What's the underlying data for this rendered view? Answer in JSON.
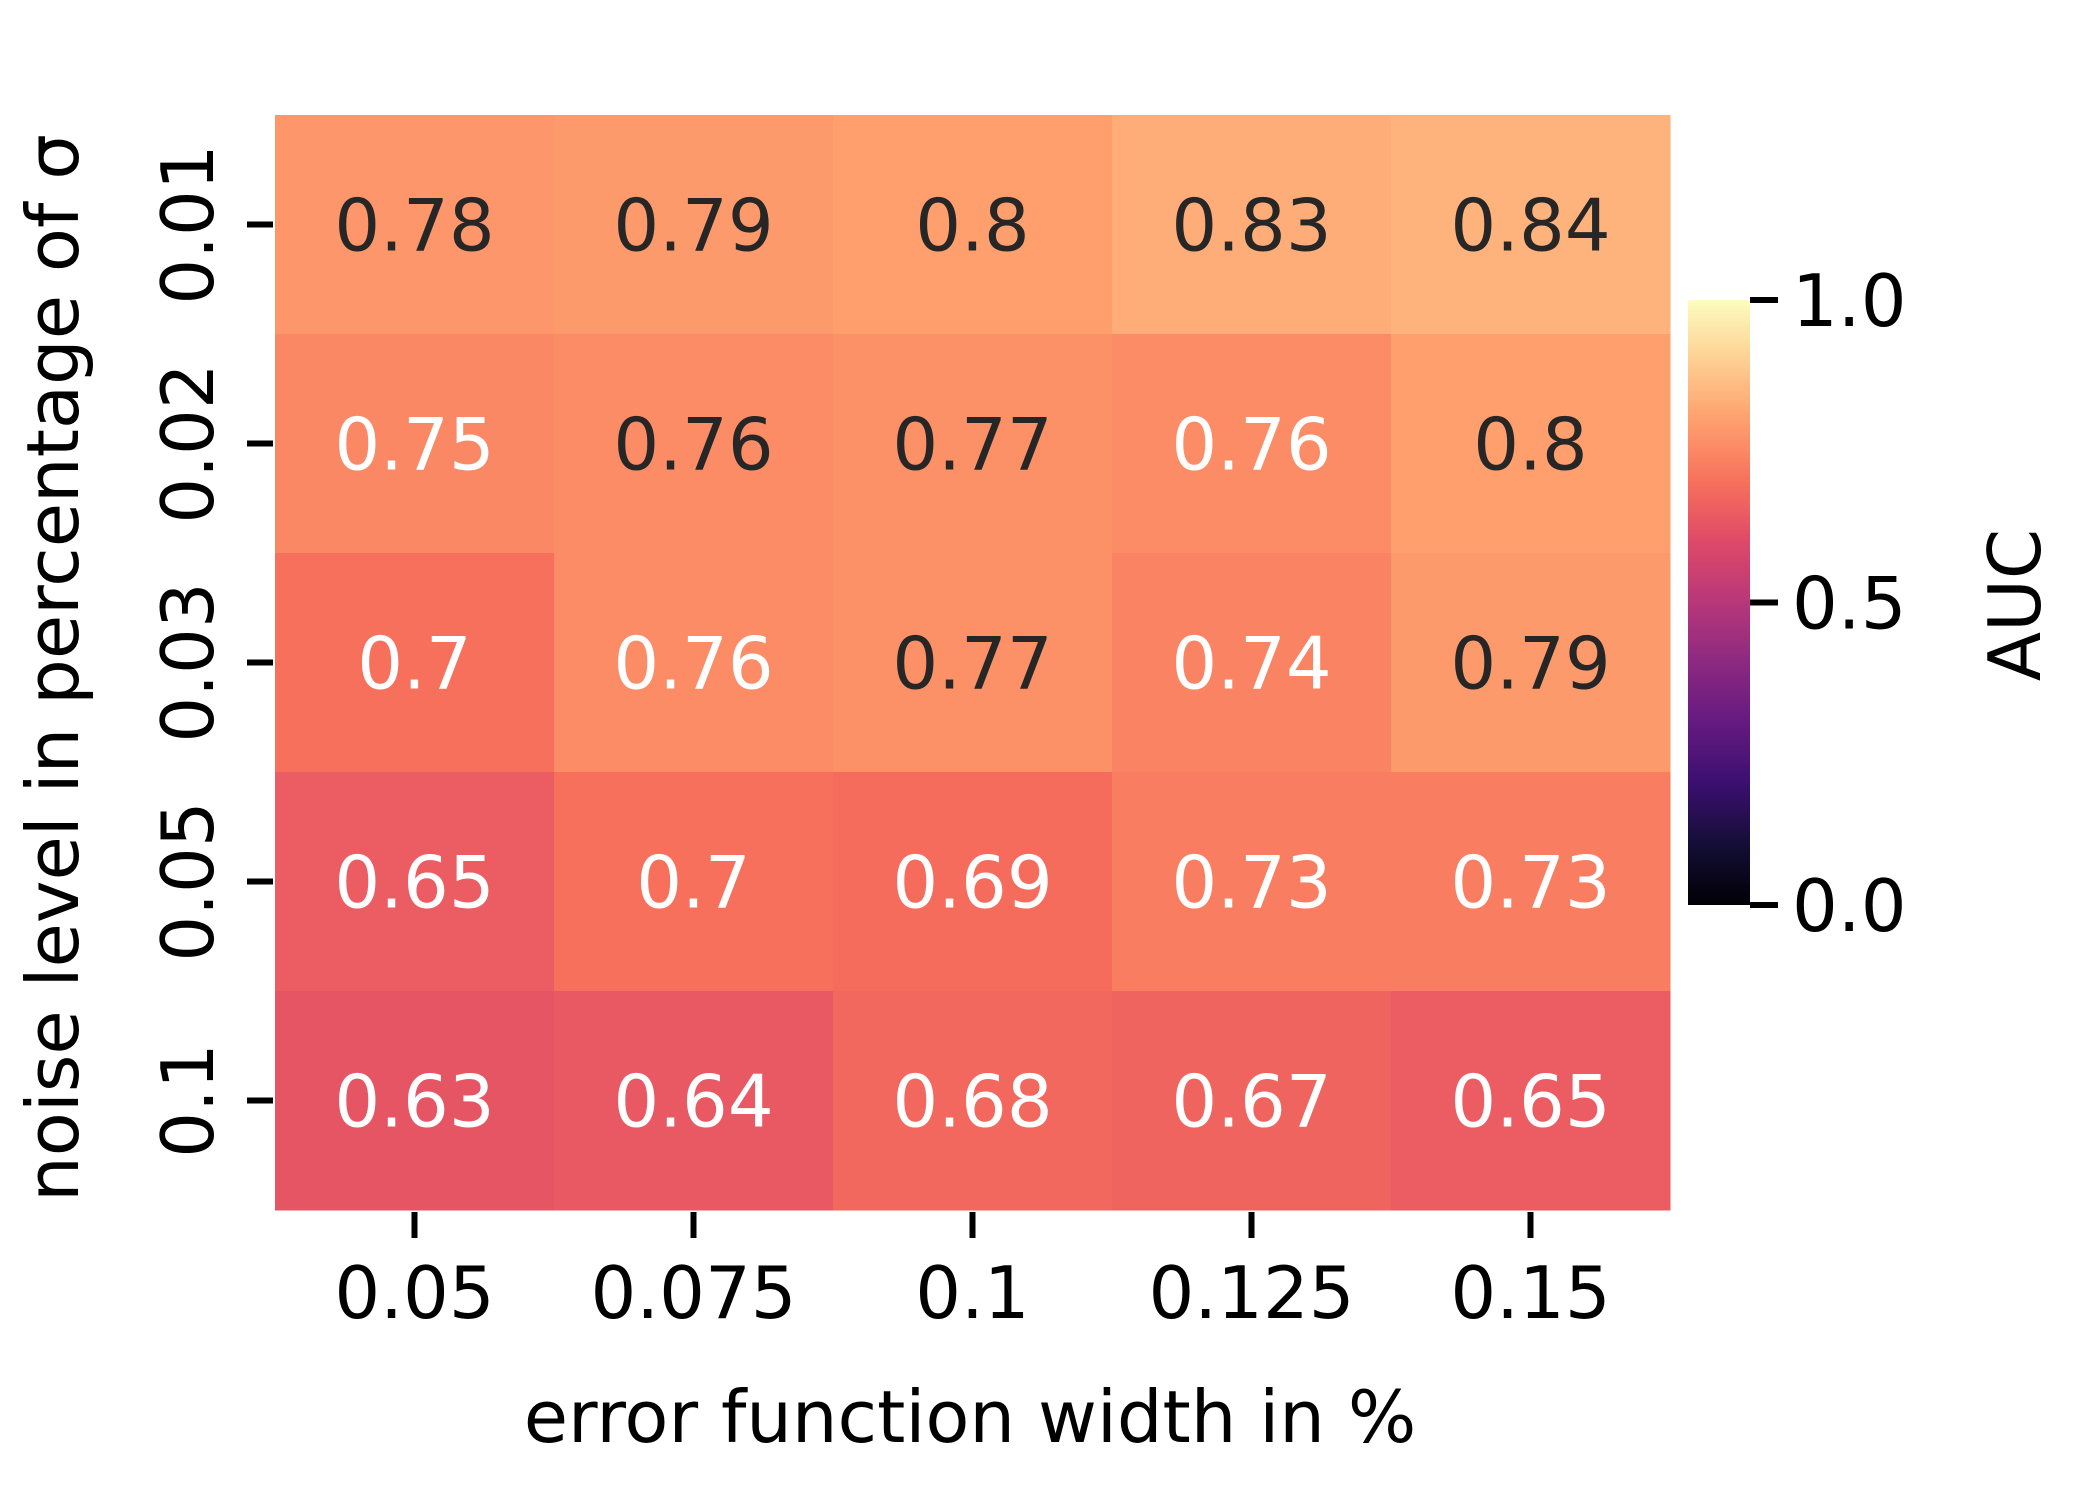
{
  "chart_data": {
    "type": "heatmap",
    "xlabel": "error function width in %",
    "ylabel": "noise level in percentage of σ",
    "x_categories": [
      "0.05",
      "0.075",
      "0.1",
      "0.125",
      "0.15"
    ],
    "y_categories": [
      "0.01",
      "0.02",
      "0.03",
      "0.05",
      "0.1"
    ],
    "values": [
      [
        0.78,
        0.79,
        0.8,
        0.83,
        0.84
      ],
      [
        0.75,
        0.76,
        0.77,
        0.76,
        0.8
      ],
      [
        0.7,
        0.76,
        0.77,
        0.74,
        0.79
      ],
      [
        0.65,
        0.7,
        0.69,
        0.73,
        0.73
      ],
      [
        0.63,
        0.64,
        0.68,
        0.67,
        0.65
      ]
    ],
    "cell_labels": [
      [
        "0.78",
        "0.79",
        "0.8",
        "0.83",
        "0.84"
      ],
      [
        "0.75",
        "0.76",
        "0.77",
        "0.76",
        "0.8"
      ],
      [
        "0.7",
        "0.76",
        "0.77",
        "0.74",
        "0.79"
      ],
      [
        "0.65",
        "0.7",
        "0.69",
        "0.73",
        "0.73"
      ],
      [
        "0.63",
        "0.64",
        "0.68",
        "0.67",
        "0.65"
      ]
    ],
    "label_colors": [
      [
        "dark",
        "dark",
        "dark",
        "dark",
        "dark"
      ],
      [
        "light",
        "dark",
        "dark",
        "light",
        "dark"
      ],
      [
        "light",
        "light",
        "dark",
        "light",
        "dark"
      ],
      [
        "light",
        "light",
        "light",
        "light",
        "light"
      ],
      [
        "light",
        "light",
        "light",
        "light",
        "light"
      ]
    ],
    "label_color_values": {
      "dark": "#262626",
      "light": "#ffffff"
    },
    "colormap": "magma",
    "colorbar": {
      "label": "AUC",
      "range": [
        0.0,
        1.0
      ],
      "ticks": [
        0.0,
        0.5,
        1.0
      ],
      "tick_labels": [
        "0.0",
        "0.5",
        "1.0"
      ]
    }
  }
}
